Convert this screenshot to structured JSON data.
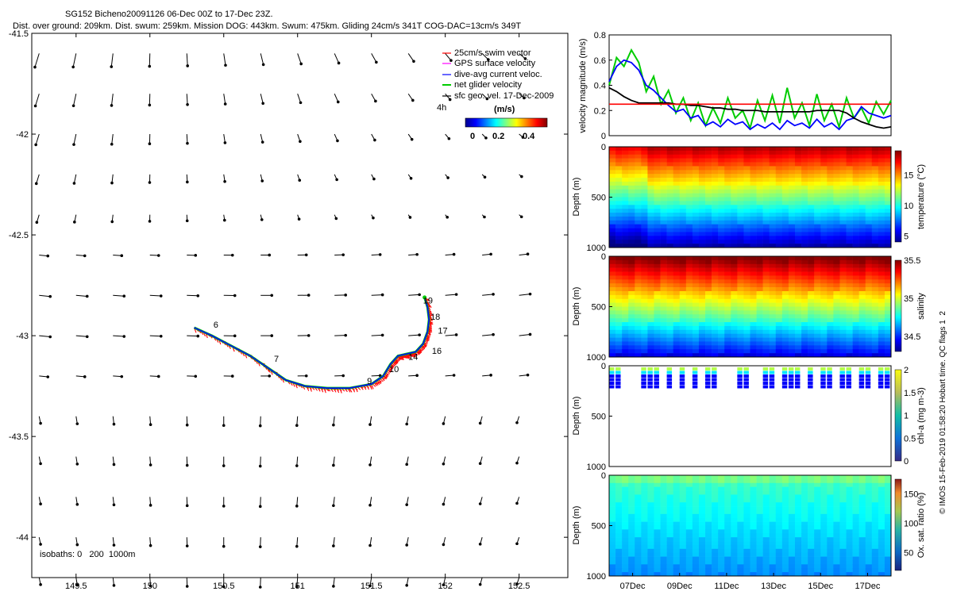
{
  "title": {
    "line1": "SG152 Bicheno20091126 06-Dec 00Z to 17-Dec 23Z.",
    "line2": "Dist. over ground: 209km. Dist. swum: 259km. Mission DOG: 443km. Swum: 475km. Gliding 24cm/s 341T COG-DAC=13cm/s 349T"
  },
  "colors": {
    "swim_vector": "#ff0000",
    "gps_surface": "#ff00ff",
    "dac": "#0000ff",
    "net_velocity": "#00cc00",
    "geo_vel": "#000000"
  },
  "map": {
    "legend": [
      {
        "label": "25cm/s swim vector",
        "color": "#ff0000"
      },
      {
        "label": "GPS surface velocity",
        "color": "#ff00ff"
      },
      {
        "label": "dive-avg current veloc.",
        "color": "#0000ff"
      },
      {
        "label": "net glider velocity",
        "color": "#00cc00"
      },
      {
        "label": "sfc geo. vel. 17-Dec-2009",
        "color": "#000000"
      }
    ],
    "four_h": "4h",
    "colorbar_title": "(m/s)",
    "colorbar_ticks": [
      "0",
      "0.2",
      "0.4"
    ],
    "isobaths": "isobaths: 0   200  1000m",
    "day_labels": [
      {
        "text": "6",
        "lon": 150.43,
        "lat": -42.96
      },
      {
        "text": "7",
        "lon": 150.84,
        "lat": -43.13
      },
      {
        "text": "9",
        "lon": 151.47,
        "lat": -43.24
      },
      {
        "text": "10",
        "lon": 151.62,
        "lat": -43.18
      },
      {
        "text": "14",
        "lon": 151.75,
        "lat": -43.12
      },
      {
        "text": "16",
        "lon": 151.91,
        "lat": -43.09
      },
      {
        "text": "17",
        "lon": 151.95,
        "lat": -42.99
      },
      {
        "text": "18",
        "lon": 151.9,
        "lat": -42.92
      },
      {
        "text": "19",
        "lon": 151.85,
        "lat": -42.84
      }
    ]
  },
  "chart_data": [
    {
      "type": "scatter",
      "title": "",
      "xlabel": "",
      "ylabel": "",
      "xlim": [
        149.2,
        152.83
      ],
      "ylim": [
        -44.2,
        -41.5
      ],
      "x_ticks": [
        "149.5",
        "150",
        "150.5",
        "151",
        "151.5",
        "152",
        "152.5"
      ],
      "y_ticks": [
        "-41.5",
        "-42",
        "-42.5",
        "-43",
        "-43.5",
        "-44"
      ],
      "glider_track": {
        "lon": [
          150.3,
          150.42,
          150.55,
          150.68,
          150.8,
          150.92,
          151.05,
          151.2,
          151.35,
          151.5,
          151.58,
          151.63,
          151.68,
          151.74,
          151.8,
          151.85,
          151.88,
          151.89,
          151.88,
          151.86
        ],
        "lat": [
          -42.96,
          -43.0,
          -43.05,
          -43.1,
          -43.16,
          -43.22,
          -43.25,
          -43.26,
          -43.26,
          -43.24,
          -43.2,
          -43.14,
          -43.1,
          -43.09,
          -43.08,
          -43.04,
          -42.98,
          -42.92,
          -42.86,
          -42.81
        ]
      }
    },
    {
      "type": "line",
      "ylabel": "velocity magnitude (m/s)",
      "ylim": [
        0,
        0.8
      ],
      "y_ticks": [
        "0",
        "0.2",
        "0.4",
        "0.6",
        "0.8"
      ],
      "xlim": [
        0,
        12
      ],
      "reference_line": 0.25,
      "series": [
        {
          "color": "#00cc00",
          "values": [
            0.4,
            0.62,
            0.55,
            0.68,
            0.58,
            0.35,
            0.47,
            0.25,
            0.36,
            0.18,
            0.3,
            0.12,
            0.26,
            0.08,
            0.22,
            0.1,
            0.3,
            0.14,
            0.2,
            0.06,
            0.28,
            0.12,
            0.32,
            0.1,
            0.38,
            0.14,
            0.26,
            0.08,
            0.33,
            0.12,
            0.25,
            0.07,
            0.3,
            0.14,
            0.22,
            0.1,
            0.27,
            0.17,
            0.28
          ]
        },
        {
          "color": "#0000ff",
          "values": [
            0.43,
            0.55,
            0.6,
            0.58,
            0.52,
            0.4,
            0.36,
            0.3,
            0.24,
            0.19,
            0.21,
            0.14,
            0.16,
            0.08,
            0.11,
            0.07,
            0.13,
            0.09,
            0.11,
            0.05,
            0.09,
            0.06,
            0.1,
            0.05,
            0.12,
            0.08,
            0.1,
            0.06,
            0.13,
            0.07,
            0.1,
            0.05,
            0.12,
            0.14,
            0.23,
            0.18,
            0.16,
            0.14,
            0.16
          ]
        },
        {
          "color": "#000000",
          "values": [
            0.38,
            0.35,
            0.31,
            0.28,
            0.26,
            0.26,
            0.26,
            0.26,
            0.26,
            0.25,
            0.25,
            0.24,
            0.24,
            0.23,
            0.22,
            0.22,
            0.21,
            0.21,
            0.2,
            0.2,
            0.2,
            0.19,
            0.19,
            0.19,
            0.19,
            0.19,
            0.19,
            0.19,
            0.2,
            0.2,
            0.2,
            0.2,
            0.18,
            0.14,
            0.11,
            0.09,
            0.07,
            0.06,
            0.07
          ]
        }
      ]
    },
    {
      "type": "heatmap",
      "ylabel": "Depth (m)",
      "colorbar_label": "temperature (°C)",
      "clim": [
        4,
        19
      ],
      "cticks": [
        "5",
        "10",
        "15"
      ],
      "y_ticks": [
        "0",
        "500",
        "1000"
      ]
    },
    {
      "type": "heatmap",
      "ylabel": "Depth (m)",
      "colorbar_label": "salinity",
      "clim": [
        34.3,
        35.5
      ],
      "cticks": [
        "34.5",
        "35",
        "35.5"
      ],
      "y_ticks": [
        "0",
        "500",
        "1000"
      ]
    },
    {
      "type": "heatmap",
      "ylabel": "Depth (m)",
      "colorbar_label": "chl-a (mg m-3)",
      "clim": [
        0,
        2
      ],
      "cticks": [
        "0",
        "0.5",
        "1",
        "1.5",
        "2"
      ],
      "y_ticks": [
        "0",
        "500",
        "1000"
      ]
    },
    {
      "type": "heatmap",
      "ylabel": "Depth (m)",
      "colorbar_label": "Ox. sat. ratio (%)",
      "clim": [
        20,
        175
      ],
      "cticks": [
        "50",
        "100",
        "150"
      ],
      "y_ticks": [
        "0",
        "500",
        "1000"
      ],
      "x_ticks": [
        "07Dec",
        "09Dec",
        "11Dec",
        "13Dec",
        "15Dec",
        "17Dec"
      ]
    }
  ],
  "footer": "© IMOS 15-Feb-2019 01:58:20 Hobart time. QC flags 1  2"
}
